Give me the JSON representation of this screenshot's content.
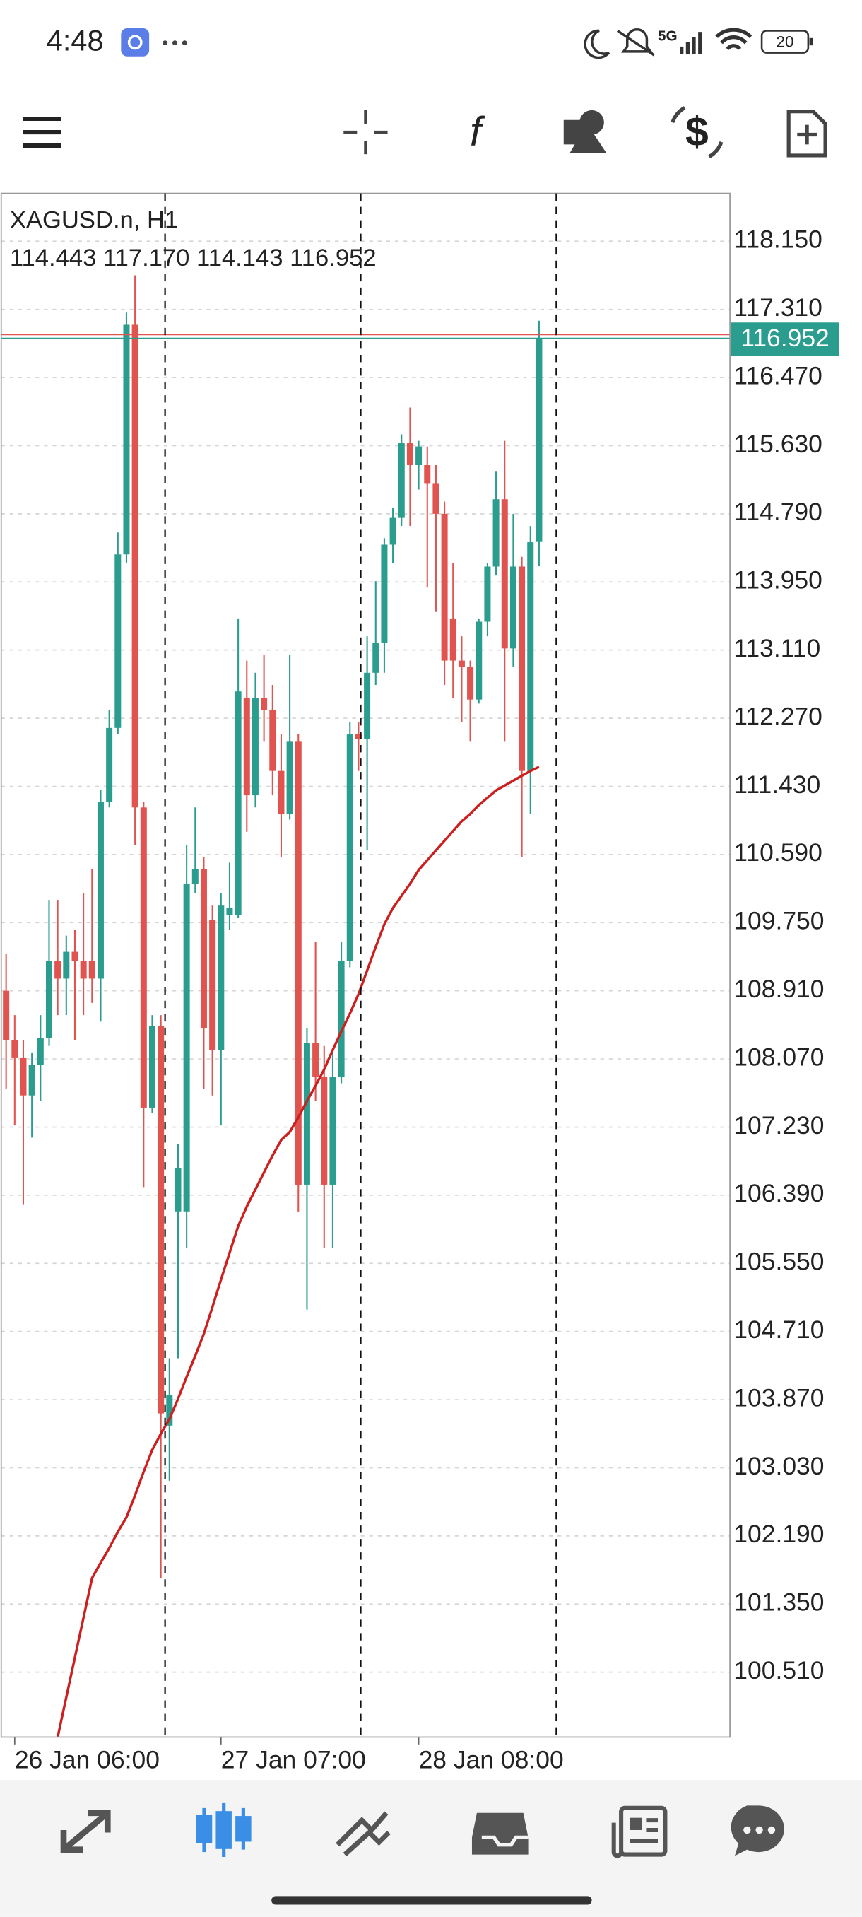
{
  "status_bar": {
    "time": "4:48",
    "network": "5G",
    "battery": "20"
  },
  "chart_data": {
    "type": "candlestick",
    "symbol": "XAGUSD.n, H1",
    "ohlc_text": "114.443 117.170 114.143 116.952",
    "categories": [
      null,
      "26 Jan 06:00",
      null,
      null,
      null,
      null,
      null,
      null,
      null,
      null,
      null,
      null,
      null,
      null,
      null,
      null,
      null,
      null,
      null,
      null,
      null,
      null,
      null,
      null,
      null,
      "27 Jan 07:00",
      null,
      null,
      null,
      null,
      null,
      null,
      null,
      null,
      null,
      null,
      null,
      null,
      null,
      null,
      null,
      null,
      null,
      null,
      null,
      null,
      null,
      null,
      "28 Jan 08:00",
      null,
      null,
      null,
      null,
      null,
      null,
      null,
      null,
      null,
      null,
      null,
      null,
      null,
      null
    ],
    "open": [
      108.91,
      108.3,
      108.08,
      107.62,
      108.0,
      108.33,
      109.28,
      109.06,
      109.39,
      109.28,
      109.28,
      109.06,
      111.24,
      112.15,
      114.29,
      117.12,
      111.17,
      107.47,
      108.48,
      103.55,
      106.19,
      106.19,
      110.23,
      110.41,
      109.78,
      108.18,
      109.84,
      109.84,
      112.52,
      111.32,
      112.52,
      112.37,
      111.62,
      111.09,
      111.98,
      106.52,
      108.27,
      107.85,
      106.52,
      107.85,
      109.28,
      112.07,
      112.01,
      112.83,
      113.2,
      114.41,
      114.74,
      115.66,
      115.39,
      115.39,
      115.16,
      114.79,
      113.5,
      112.98,
      112.9,
      112.5,
      113.46,
      114.14,
      114.97,
      113.13,
      114.14,
      111.62,
      114.443
    ],
    "high": [
      109.36,
      108.61,
      108.3,
      108.15,
      108.61,
      110.03,
      110.03,
      109.59,
      109.66,
      110.11,
      110.41,
      111.39,
      112.37,
      114.56,
      117.27,
      117.73,
      111.24,
      108.61,
      108.61,
      104.38,
      107.02,
      110.71,
      111.17,
      110.56,
      109.96,
      110.11,
      110.49,
      113.5,
      112.98,
      112.83,
      113.05,
      112.68,
      112.07,
      113.05,
      112.07,
      108.45,
      109.51,
      108.23,
      108.15,
      109.51,
      112.22,
      112.22,
      113.28,
      113.96,
      114.49,
      114.86,
      115.77,
      116.1,
      115.69,
      115.62,
      115.39,
      114.94,
      114.18,
      113.28,
      112.98,
      113.5,
      114.18,
      115.31,
      115.69,
      114.79,
      114.26,
      114.64,
      117.17
    ],
    "low": [
      107.7,
      107.25,
      106.27,
      107.1,
      107.55,
      108.23,
      108.61,
      108.61,
      108.3,
      108.61,
      108.76,
      108.53,
      111.17,
      112.07,
      114.18,
      110.71,
      106.49,
      107.4,
      101.67,
      102.87,
      104.38,
      105.74,
      110.11,
      107.7,
      107.62,
      107.25,
      109.66,
      109.81,
      110.87,
      111.17,
      111.98,
      111.32,
      110.56,
      111.02,
      106.19,
      104.98,
      107.55,
      105.74,
      105.74,
      107.77,
      109.2,
      111.62,
      110.64,
      112.68,
      112.83,
      114.18,
      114.64,
      114.64,
      115.09,
      113.88,
      113.58,
      112.68,
      112.52,
      112.22,
      111.98,
      112.45,
      113.28,
      114.03,
      111.98,
      112.9,
      110.56,
      111.09,
      114.143
    ],
    "close": [
      108.3,
      108.08,
      107.62,
      108.0,
      108.33,
      109.28,
      109.06,
      109.39,
      109.28,
      109.06,
      109.06,
      111.24,
      112.15,
      114.29,
      117.12,
      111.17,
      107.47,
      108.48,
      103.7,
      103.93,
      106.72,
      110.23,
      110.41,
      108.45,
      108.18,
      109.96,
      109.93,
      112.6,
      111.32,
      112.52,
      112.37,
      111.62,
      111.09,
      111.98,
      106.52,
      108.27,
      107.85,
      106.52,
      107.85,
      109.28,
      112.07,
      112.01,
      112.83,
      113.2,
      114.41,
      114.74,
      115.66,
      115.39,
      115.62,
      115.16,
      114.79,
      112.98,
      112.98,
      112.9,
      112.5,
      113.46,
      114.14,
      114.97,
      113.13,
      114.14,
      111.62,
      114.44,
      116.952
    ],
    "up_color": "#2a9d8f",
    "down_color": "#e0534f",
    "moving_average": {
      "color": "#cc1f1f",
      "values": [
        null,
        null,
        null,
        null,
        null,
        null,
        99.71,
        100.2,
        100.69,
        101.18,
        101.67,
        101.86,
        102.04,
        102.24,
        102.42,
        102.69,
        102.98,
        103.25,
        103.45,
        103.63,
        103.88,
        104.15,
        104.41,
        104.68,
        105.01,
        105.35,
        105.68,
        106.01,
        106.25,
        106.46,
        106.67,
        106.88,
        107.07,
        107.17,
        107.35,
        107.55,
        107.74,
        107.94,
        108.18,
        108.41,
        108.63,
        108.87,
        109.16,
        109.45,
        109.73,
        109.93,
        110.08,
        110.23,
        110.4,
        110.52,
        110.64,
        110.76,
        110.88,
        111.0,
        111.09,
        111.2,
        111.29,
        111.38,
        111.44,
        111.5,
        111.56,
        111.62,
        111.67
      ]
    },
    "current_price": 116.952,
    "ask_price": 117.0,
    "ask_color": "#e0534f",
    "ylim": [
      99.71,
      118.74
    ],
    "yticks": [
      {
        "value": 118.15,
        "label": "118.150"
      },
      {
        "value": 117.31,
        "label": "117.310"
      },
      {
        "value": 116.47,
        "label": "116.470"
      },
      {
        "value": 115.63,
        "label": "115.630"
      },
      {
        "value": 114.79,
        "label": "114.790"
      },
      {
        "value": 113.95,
        "label": "113.950"
      },
      {
        "value": 113.11,
        "label": "113.110"
      },
      {
        "value": 112.27,
        "label": "112.270"
      },
      {
        "value": 111.43,
        "label": "111.430"
      },
      {
        "value": 110.59,
        "label": "110.590"
      },
      {
        "value": 109.75,
        "label": "109.750"
      },
      {
        "value": 108.91,
        "label": "108.910"
      },
      {
        "value": 108.07,
        "label": "108.070"
      },
      {
        "value": 107.23,
        "label": "107.230"
      },
      {
        "value": 106.39,
        "label": "106.390"
      },
      {
        "value": 105.55,
        "label": "105.550"
      },
      {
        "value": 104.71,
        "label": "104.710"
      },
      {
        "value": 103.87,
        "label": "103.870"
      },
      {
        "value": 103.03,
        "label": "103.030"
      },
      {
        "value": 102.19,
        "label": "102.190"
      },
      {
        "value": 101.35,
        "label": "101.350"
      },
      {
        "value": 100.51,
        "label": "100.510"
      }
    ],
    "grid": true
  }
}
